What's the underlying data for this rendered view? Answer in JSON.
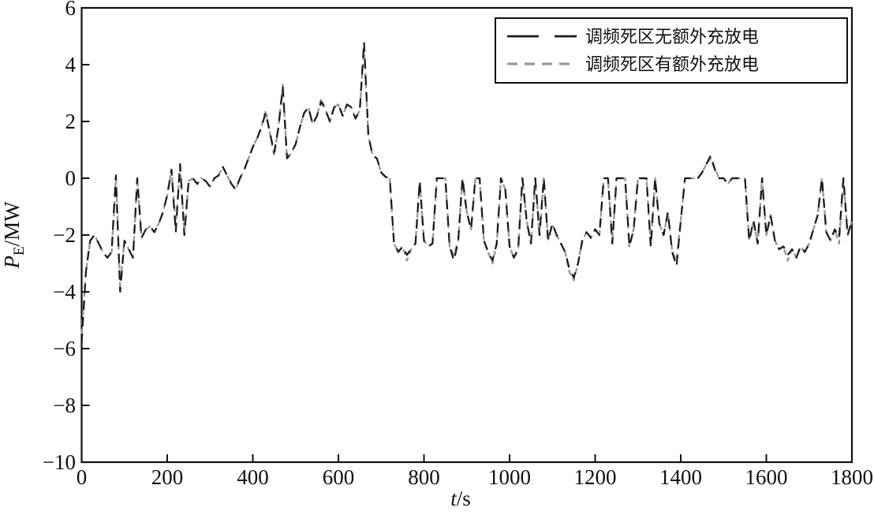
{
  "figure": {
    "background": "#ffffff",
    "border_color": "#111111"
  },
  "chart_data": {
    "type": "line",
    "title": "",
    "xlabel": {
      "var": "t",
      "unit": "/s"
    },
    "ylabel": {
      "var": "P",
      "sub": "E",
      "unit": "/MW"
    },
    "xlim": [
      0,
      1800
    ],
    "ylim": [
      -10,
      6
    ],
    "xticks": [
      0,
      200,
      400,
      600,
      800,
      1000,
      1200,
      1400,
      1600,
      1800
    ],
    "yticks": [
      6,
      4,
      2,
      0,
      -2,
      -4,
      -6,
      -8,
      -10
    ],
    "grid": false,
    "legend_position": "top-right",
    "x_start": 0,
    "x_step": 10,
    "series": [
      {
        "name": "调频死区无额外充放电",
        "color": "#1a1a1a",
        "dash": [
          12,
          9
        ],
        "line_width": 2.2,
        "values": [
          -5.8,
          -3.3,
          -2.2,
          -2.0,
          -2.3,
          -2.6,
          -2.8,
          -2.6,
          0.1,
          -4.0,
          -2.2,
          -2.5,
          -2.8,
          0.0,
          -2.1,
          -1.8,
          -1.7,
          -1.9,
          -1.6,
          -1.2,
          -0.6,
          0.3,
          -1.9,
          0.5,
          -2.0,
          -0.1,
          0.0,
          -0.2,
          0.0,
          -0.1,
          -0.3,
          0.0,
          0.1,
          0.4,
          0.1,
          -0.2,
          -0.4,
          0.0,
          0.3,
          0.7,
          1.1,
          1.4,
          1.8,
          2.3,
          1.6,
          0.9,
          1.8,
          3.2,
          0.7,
          0.9,
          1.2,
          1.8,
          2.3,
          2.5,
          1.9,
          2.2,
          2.7,
          2.4,
          2.0,
          2.5,
          2.6,
          2.2,
          2.6,
          2.5,
          2.1,
          2.4,
          4.8,
          1.5,
          0.8,
          0.7,
          0.2,
          0.05,
          0.0,
          -2.3,
          -2.6,
          -2.4,
          -2.7,
          -2.5,
          -2.3,
          -0.1,
          -2.2,
          -2.4,
          -2.3,
          0.0,
          0.0,
          0.0,
          -2.4,
          -2.9,
          -2.2,
          0.0,
          -1.2,
          -1.8,
          0.0,
          0.0,
          -2.2,
          -2.6,
          -2.9,
          -2.3,
          0.0,
          -0.4,
          -2.4,
          -2.8,
          -2.5,
          0.0,
          -1.5,
          -2.3,
          0.0,
          -2.0,
          0.0,
          -2.2,
          -1.6,
          -2.0,
          -2.3,
          -2.6,
          -3.2,
          -3.5,
          -3.0,
          -2.2,
          -1.9,
          -2.1,
          -1.8,
          -2.0,
          0.0,
          0.0,
          -2.3,
          0.0,
          0.0,
          0.0,
          -2.4,
          -1.8,
          0.0,
          0.0,
          0.0,
          -2.4,
          0.0,
          -1.6,
          -2.0,
          -1.2,
          -2.6,
          -3.1,
          -1.5,
          0.0,
          0.0,
          0.0,
          0.0,
          0.2,
          0.5,
          0.8,
          0.3,
          0.0,
          0.0,
          -0.2,
          0.0,
          0.0,
          0.0,
          0.0,
          -2.2,
          -1.5,
          -2.3,
          0.0,
          -2.0,
          -1.3,
          -2.2,
          -2.5,
          -2.4,
          -2.7,
          -2.5,
          -2.8,
          -2.4,
          -2.6,
          -2.3,
          -1.8,
          -1.3,
          0.0,
          -1.9,
          -2.2,
          -1.8,
          -2.1,
          0.0,
          -2.0,
          -1.5
        ]
      },
      {
        "name": "调频死区有额外充放电",
        "color": "#9a9a9a",
        "dash": [
          7,
          5
        ],
        "line_width": 2.4,
        "values": [
          -5.5,
          -3.3,
          -2.2,
          -2.0,
          -2.3,
          -2.6,
          -2.8,
          -2.6,
          0.0,
          -3.8,
          -2.2,
          -2.5,
          -2.8,
          0.0,
          -2.1,
          -1.8,
          -1.7,
          -1.9,
          -1.6,
          -1.2,
          -0.6,
          0.3,
          -1.7,
          0.5,
          -2.0,
          -0.1,
          0.0,
          -0.2,
          0.0,
          -0.1,
          -0.3,
          0.0,
          0.1,
          0.4,
          0.1,
          -0.2,
          -0.4,
          0.0,
          0.3,
          0.7,
          1.1,
          1.4,
          1.8,
          2.4,
          1.6,
          0.8,
          1.8,
          3.3,
          0.7,
          0.9,
          1.2,
          1.8,
          2.3,
          2.5,
          1.9,
          2.2,
          2.8,
          2.4,
          2.0,
          2.5,
          2.6,
          2.2,
          2.6,
          2.5,
          2.1,
          2.4,
          4.6,
          1.5,
          0.8,
          0.7,
          0.2,
          0.05,
          0.0,
          -2.3,
          -2.6,
          -2.4,
          -2.9,
          -2.5,
          -2.3,
          -0.1,
          -2.2,
          -2.4,
          -2.3,
          0.0,
          0.0,
          0.0,
          -2.4,
          -2.7,
          -2.2,
          0.0,
          -1.2,
          -1.8,
          0.0,
          0.0,
          -2.2,
          -2.6,
          -3.0,
          -2.3,
          0.0,
          -0.4,
          -2.4,
          -2.8,
          -2.5,
          0.0,
          -1.5,
          -2.3,
          0.0,
          -2.0,
          0.0,
          -2.2,
          -1.6,
          -2.0,
          -2.3,
          -2.6,
          -3.3,
          -3.6,
          -3.0,
          -2.2,
          -1.9,
          -2.1,
          -1.8,
          -2.0,
          0.0,
          0.0,
          -2.3,
          0.0,
          0.0,
          0.0,
          -2.4,
          -1.8,
          0.0,
          0.0,
          0.0,
          -2.4,
          0.0,
          -1.6,
          -2.0,
          -1.2,
          -2.6,
          -2.9,
          -1.5,
          0.0,
          0.0,
          0.0,
          0.0,
          0.2,
          0.5,
          0.7,
          0.3,
          0.0,
          0.0,
          -0.2,
          0.0,
          0.0,
          0.0,
          0.0,
          -2.2,
          -1.5,
          -2.3,
          0.0,
          -2.0,
          -1.3,
          -2.2,
          -2.5,
          -2.4,
          -2.9,
          -2.5,
          -2.8,
          -2.4,
          -2.6,
          -2.3,
          -1.8,
          -1.3,
          0.0,
          -1.9,
          -2.2,
          -1.8,
          -2.3,
          0.0,
          -2.0,
          -1.5
        ]
      }
    ]
  }
}
